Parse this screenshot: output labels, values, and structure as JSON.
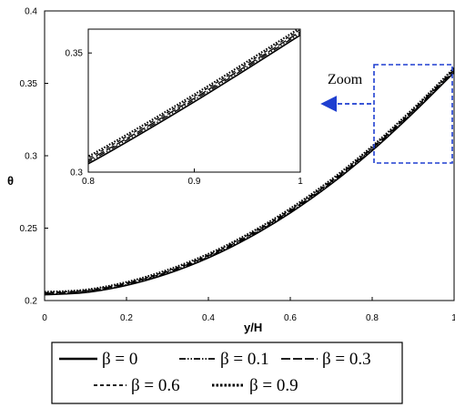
{
  "chart_data": {
    "type": "line",
    "xlabel": "y/H",
    "ylabel": "θ",
    "xlim": [
      0,
      1
    ],
    "ylim": [
      0.2,
      0.4
    ],
    "x_ticks": [
      "0",
      "0.2",
      "0.4",
      "0.6",
      "0.8",
      "1"
    ],
    "y_ticks": [
      "0.2",
      "0.25",
      "0.3",
      "0.35",
      "0.4"
    ],
    "grid": false,
    "legend_position": "bottom",
    "zoom_label": "Zoom",
    "series": [
      {
        "name": "β = 0",
        "style": "solid",
        "x": [
          0,
          0.1,
          0.2,
          0.3,
          0.4,
          0.5,
          0.6,
          0.7,
          0.8,
          0.9,
          1.0
        ],
        "y": [
          0.204,
          0.2055,
          0.2105,
          0.2185,
          0.2295,
          0.2435,
          0.2605,
          0.2805,
          0.3035,
          0.3295,
          0.3575
        ]
      },
      {
        "name": "β = 0.1",
        "style": "dash-dot-dot",
        "x": [
          0,
          0.1,
          0.2,
          0.3,
          0.4,
          0.5,
          0.6,
          0.7,
          0.8,
          0.9,
          1.0
        ],
        "y": [
          0.2045,
          0.206,
          0.211,
          0.2192,
          0.2302,
          0.2443,
          0.2613,
          0.2813,
          0.3043,
          0.3303,
          0.3583
        ]
      },
      {
        "name": "β = 0.3",
        "style": "long-dash",
        "x": [
          0,
          0.1,
          0.2,
          0.3,
          0.4,
          0.5,
          0.6,
          0.7,
          0.8,
          0.9,
          1.0
        ],
        "y": [
          0.205,
          0.2065,
          0.2117,
          0.2198,
          0.2309,
          0.245,
          0.262,
          0.282,
          0.305,
          0.331,
          0.359
        ]
      },
      {
        "name": "β = 0.6",
        "style": "dash",
        "x": [
          0,
          0.1,
          0.2,
          0.3,
          0.4,
          0.5,
          0.6,
          0.7,
          0.8,
          0.9,
          1.0
        ],
        "y": [
          0.2055,
          0.207,
          0.2122,
          0.2205,
          0.2316,
          0.2458,
          0.2628,
          0.2828,
          0.3058,
          0.3318,
          0.3598
        ]
      },
      {
        "name": "β = 0.9",
        "style": "dot",
        "x": [
          0,
          0.1,
          0.2,
          0.3,
          0.4,
          0.5,
          0.6,
          0.7,
          0.8,
          0.9,
          1.0
        ],
        "y": [
          0.206,
          0.2075,
          0.2128,
          0.2212,
          0.2323,
          0.2465,
          0.2636,
          0.2836,
          0.3066,
          0.3326,
          0.3606
        ]
      }
    ],
    "inset": {
      "xlim": [
        0.8,
        1
      ],
      "ylim": [
        0.3,
        0.36
      ],
      "x_ticks": [
        "0.8",
        "0.9",
        "1"
      ],
      "y_ticks": [
        "0.3",
        "0.35"
      ]
    }
  }
}
